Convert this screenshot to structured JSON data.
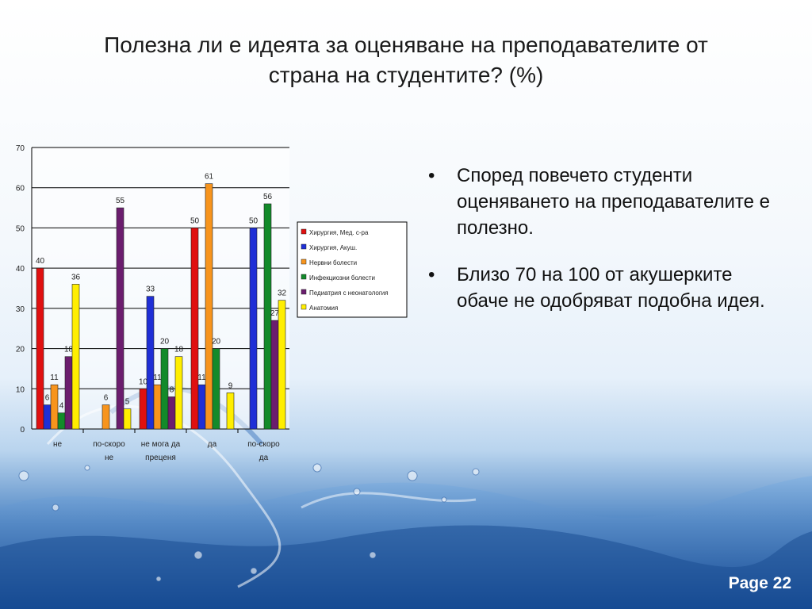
{
  "slide": {
    "title_line1": "Полезна ли е идеята за оценяване на преподавателите от",
    "title_line2": "страна на студентите? (%)",
    "bullets": [
      "Според повечето студенти оценяването на преподавателите е полезно.",
      "Близо 70 на 100 от акушерките обаче не одобряват подобна идея."
    ],
    "bullet_symbol": "•",
    "page_label": "Page 22"
  },
  "chart_data": {
    "type": "bar",
    "categories": [
      [
        "не"
      ],
      [
        "по-скоро",
        "не"
      ],
      [
        "не мога да",
        "преценя"
      ],
      [
        "да"
      ],
      [
        "по-скоро",
        "да"
      ]
    ],
    "ylim": [
      0,
      70
    ],
    "yticks": [
      0,
      10,
      20,
      30,
      40,
      50,
      60,
      70
    ],
    "grid": true,
    "legend_position": "right",
    "series": [
      {
        "name": "Хирургия, Мед. с-ра",
        "color": "#e01010",
        "values": [
          40,
          null,
          10,
          50,
          null
        ]
      },
      {
        "name": "Хирургия, Акуш.",
        "color": "#1f2fd6",
        "values": [
          6,
          null,
          33,
          11,
          50
        ]
      },
      {
        "name": "Нервни болести",
        "color": "#f7941d",
        "values": [
          11,
          6,
          11,
          61,
          null
        ]
      },
      {
        "name": "Инфекциозни болести",
        "color": "#138a2a",
        "values": [
          4,
          null,
          20,
          20,
          56
        ]
      },
      {
        "name": "Педиатрия с неонатология",
        "color": "#6b1d6e",
        "values": [
          18,
          55,
          8,
          null,
          27
        ]
      },
      {
        "name": "Анатомия",
        "color": "#ffee00",
        "values": [
          36,
          5,
          18,
          9,
          32
        ]
      }
    ]
  }
}
